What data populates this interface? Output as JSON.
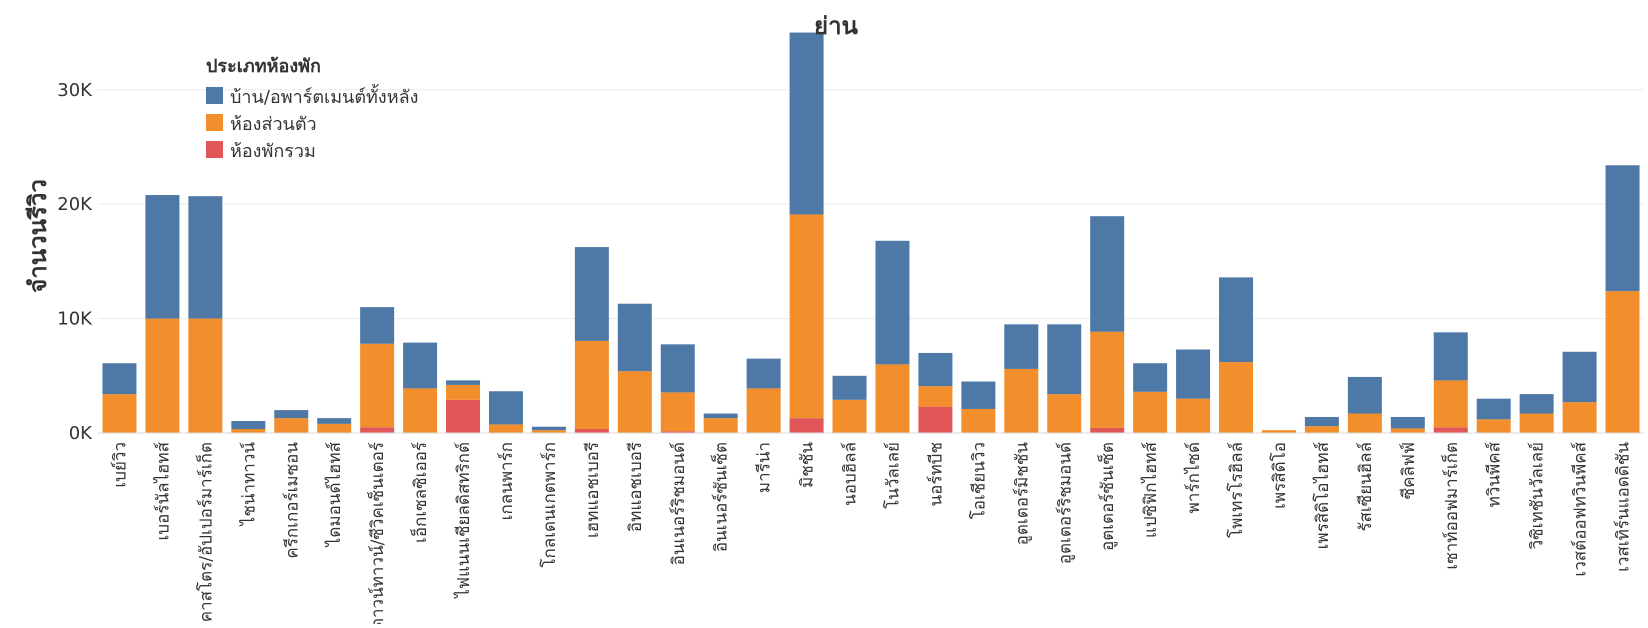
{
  "chart_data": {
    "type": "bar",
    "stacked": true,
    "title": "ย่าน",
    "ylabel": "จำนวนรีวิว",
    "xlabel": "",
    "ylim": [
      0,
      34000
    ],
    "yticks": [
      {
        "value": 0,
        "label": "0K"
      },
      {
        "value": 10000,
        "label": "10K"
      },
      {
        "value": 20000,
        "label": "20K"
      },
      {
        "value": 30000,
        "label": "30K"
      }
    ],
    "grid": true,
    "legend": {
      "title": "ประเภทห้องพัก",
      "placement": "top-left",
      "entries": [
        {
          "label": "บ้าน/อพาร์ตเมนต์ทั้งหลัง",
          "color": "#4e79a7"
        },
        {
          "label": "ห้องส่วนตัว",
          "color": "#f28e2b"
        },
        {
          "label": "ห้องพักรวม",
          "color": "#e15759"
        }
      ]
    },
    "categories": [
      "เบย์วิว",
      "เบอร์นัลไฮทส์",
      "คาสโตร/อัปเปอร์มาร์เก็ต",
      "ไชน่าทาวน์",
      "ครีกเกอร์เมซอน",
      "ไดมอนด์ไฮทส์",
      "ดาวน์ทาวน์/ซีวิคเซ็นเตอร์",
      "เอ็กเซลซิเออร์",
      "ไฟแนนเชียลดิสทริกต์",
      "เกลนพาร์ก",
      "โกลเดนเกตพาร์ก",
      "เฮทแอชเบอรี",
      "อิทแอชเบอรี",
      "อินเนอร์ริชมอนด์",
      "อินเนอร์ซันเซ็ต",
      "มารีน่า",
      "มิชชัน",
      "นอบฮิลล์",
      "โนวัลเลย์",
      "นอร์ทบีช",
      "โอเชียนวิว",
      "อูตเตอร์มิชชัน",
      "อูตเตอร์ริชมอนด์",
      "อูตเตอร์ซันเซ็ต",
      "แปซิฟิกไฮทส์",
      "พาร์กไซด์",
      "โพเทรโรฮิลล์",
      "เพรสิดิโอ",
      "เพรสิดิโอไฮทส์",
      "รัสเซียนฮิลล์",
      "ซีคลิฟฟ์",
      "เซาท์ออฟมาร์เก็ต",
      "ทวินพีคส์",
      "วิซิเทชันวัลเลย์",
      "เวสต์ออฟทวินพีคส์",
      "เวสเทิร์นแอดดิชัน"
    ],
    "series": [
      {
        "name": "ห้องพักรวม",
        "color": "#e15759",
        "values": [
          0,
          0,
          0,
          0,
          0,
          0,
          500,
          0,
          2900,
          0,
          0,
          350,
          0,
          150,
          0,
          0,
          1300,
          0,
          0,
          2300,
          0,
          0,
          0,
          450,
          0,
          0,
          0,
          0,
          0,
          0,
          0,
          500,
          0,
          0,
          0,
          0
        ]
      },
      {
        "name": "ห้องส่วนตัว",
        "color": "#f28e2b",
        "values": [
          3400,
          10000,
          10000,
          350,
          1300,
          800,
          7300,
          3900,
          1300,
          750,
          250,
          7700,
          5400,
          3400,
          1300,
          3900,
          17800,
          2900,
          6000,
          1800,
          2100,
          5600,
          3400,
          8400,
          3600,
          3000,
          6200,
          250,
          600,
          1700,
          400,
          4100,
          1200,
          1700,
          2700,
          12400
        ]
      },
      {
        "name": "บ้าน/อพาร์ตเมนต์ทั้งหลัง",
        "color": "#4e79a7",
        "values": [
          2700,
          10800,
          10700,
          700,
          700,
          500,
          3200,
          4000,
          400,
          2900,
          300,
          8200,
          5900,
          4200,
          400,
          2600,
          15900,
          2100,
          10800,
          2900,
          2400,
          3900,
          6100,
          10100,
          2500,
          4300,
          7400,
          0,
          800,
          3200,
          1000,
          4200,
          1800,
          1700,
          4400,
          11000
        ]
      }
    ]
  }
}
